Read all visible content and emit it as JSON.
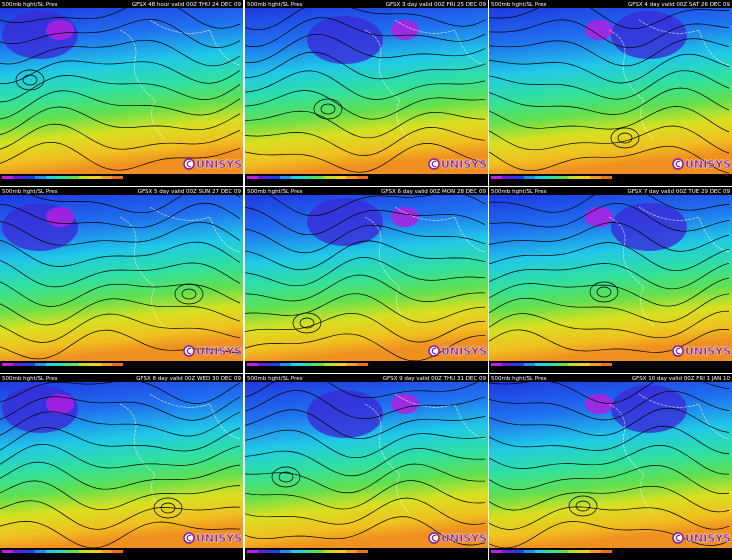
{
  "panels": [
    {
      "header_left": "500mb hght/SL Pres",
      "header_right": "GFSX 48 hour valid 00Z THU 24 DEC 09"
    },
    {
      "header_left": "500mb hght/SL Pres",
      "header_right": "GFSX 3 day valid 00Z FRI 25 DEC 09"
    },
    {
      "header_left": "500mb hght/SL Pres",
      "header_right": "GFSX 4 day valid 00Z SAT 26 DEC 09"
    },
    {
      "header_left": "500mb hght/SL Pres",
      "header_right": "GFSX 5 day valid 00Z SUN 27 DEC 09"
    },
    {
      "header_left": "500mb hght/SL Pres",
      "header_right": "GFSX 6 day valid 00Z MON 28 DEC 09"
    },
    {
      "header_left": "500mb hght/SL Pres",
      "header_right": "GFSX 7 day valid 00Z TUE 29 DEC 09"
    },
    {
      "header_left": "500mb hght/SL Pres",
      "header_right": "GFSX 8 day valid 00Z WED 30 DEC 09"
    },
    {
      "header_left": "500mb hght/SL Pres",
      "header_right": "GFSX 9 day valid 00Z THU 31 DEC 09"
    },
    {
      "header_left": "500mb hght/SL Pres",
      "header_right": "GFSX 10 day valid 00Z FRI 1 JAN 10"
    }
  ],
  "logo": "UNISYS"
}
